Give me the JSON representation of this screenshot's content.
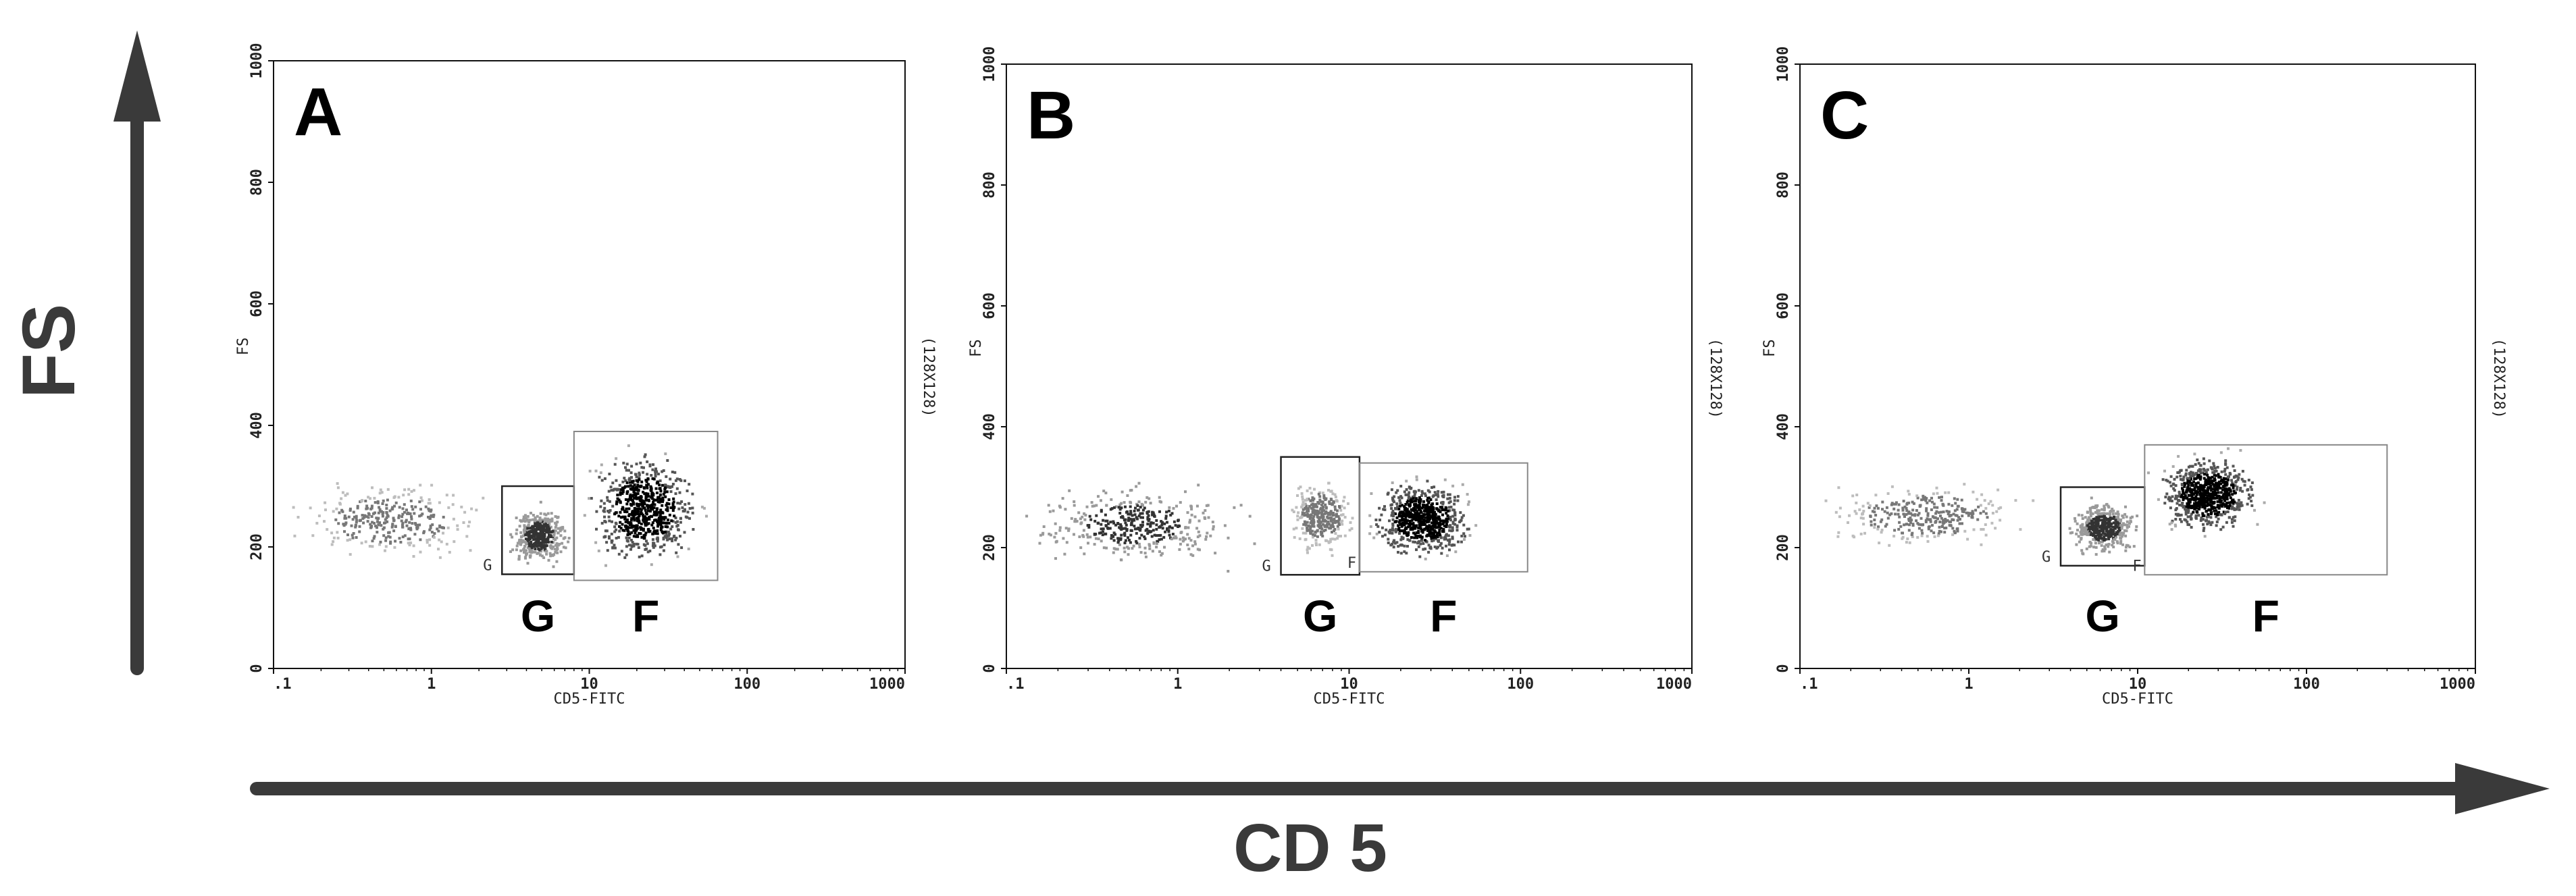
{
  "figure": {
    "y_axis_label": "FS",
    "x_axis_label": "CD 5"
  },
  "chart_data": [
    {
      "type": "scatter",
      "panel_label": "A",
      "xlabel": "CD5-FITC",
      "ylabel": "FS",
      "right_label": "(128X128)",
      "x_scale": "log",
      "xlim": [
        0.1,
        1000
      ],
      "ylim": [
        0,
        1000
      ],
      "x_ticks": [
        ".1",
        "1",
        "10",
        "100",
        "1000"
      ],
      "y_ticks": [
        "0",
        "200",
        "400",
        "600",
        "800",
        "1000"
      ],
      "grid": false,
      "gates": [
        {
          "name": "G",
          "label": "G",
          "small_label": "G",
          "x_range": [
            2.8,
            8.0
          ],
          "y_range": [
            155,
            300
          ]
        },
        {
          "name": "F",
          "label": "F",
          "small_label": "",
          "x_range": [
            8.0,
            65
          ],
          "y_range": [
            145,
            390
          ]
        }
      ],
      "populations": [
        {
          "x_range": [
            0.1,
            3.0
          ],
          "y_range": [
            170,
            320
          ],
          "density": "low"
        },
        {
          "x_range": [
            2.8,
            8.0
          ],
          "y_range": [
            160,
            280
          ],
          "density": "medium"
        },
        {
          "x_range": [
            8.0,
            60
          ],
          "y_range": [
            150,
            380
          ],
          "density": "high"
        }
      ]
    },
    {
      "type": "scatter",
      "panel_label": "B",
      "xlabel": "CD5-FITC",
      "ylabel": "FS",
      "right_label": "(128X128)",
      "x_scale": "log",
      "xlim": [
        0.1,
        1000
      ],
      "ylim": [
        0,
        1000
      ],
      "x_ticks": [
        ".1",
        "1",
        "10",
        "100",
        "1000"
      ],
      "y_ticks": [
        "0",
        "200",
        "400",
        "600",
        "800",
        "1000"
      ],
      "grid": false,
      "gates": [
        {
          "name": "G",
          "label": "G",
          "small_label": "G",
          "x_range": [
            4.0,
            11.5
          ],
          "y_range": [
            155,
            350
          ]
        },
        {
          "name": "F",
          "label": "F",
          "small_label": "F",
          "x_range": [
            11.5,
            110
          ],
          "y_range": [
            160,
            340
          ]
        }
      ],
      "populations": [
        {
          "x_range": [
            0.1,
            3.0
          ],
          "y_range": [
            160,
            320
          ],
          "density": "medium"
        },
        {
          "x_range": [
            4.0,
            11.5
          ],
          "y_range": [
            180,
            330
          ],
          "density": "low"
        },
        {
          "x_range": [
            11.5,
            60
          ],
          "y_range": [
            170,
            330
          ],
          "density": "high"
        }
      ]
    },
    {
      "type": "scatter",
      "panel_label": "C",
      "xlabel": "CD5-FITC",
      "ylabel": "FS",
      "right_label": "(128X128)",
      "x_scale": "log",
      "xlim": [
        0.1,
        1000
      ],
      "ylim": [
        0,
        1000
      ],
      "x_ticks": [
        ".1",
        "1",
        "10",
        "100",
        "1000"
      ],
      "y_ticks": [
        "0",
        "200",
        "400",
        "600",
        "800",
        "1000"
      ],
      "grid": false,
      "gates": [
        {
          "name": "G",
          "label": "G",
          "small_label": "G",
          "x_range": [
            3.5,
            11.0
          ],
          "y_range": [
            170,
            300
          ]
        },
        {
          "name": "F",
          "label": "F",
          "small_label": "F",
          "x_range": [
            11.0,
            300
          ],
          "y_range": [
            155,
            370
          ]
        }
      ],
      "populations": [
        {
          "x_range": [
            0.1,
            3.0
          ],
          "y_range": [
            190,
            320
          ],
          "density": "low"
        },
        {
          "x_range": [
            3.5,
            11.0
          ],
          "y_range": [
            180,
            290
          ],
          "density": "medium"
        },
        {
          "x_range": [
            11.0,
            60
          ],
          "y_range": [
            210,
            370
          ],
          "density": "high"
        }
      ]
    }
  ]
}
